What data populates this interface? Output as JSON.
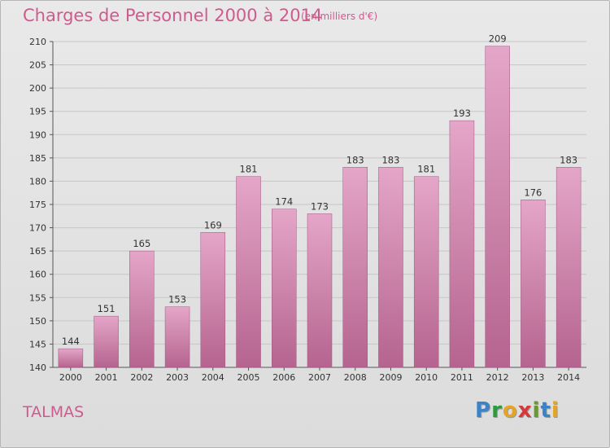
{
  "header": {
    "title": "Charges de Personnel 2000 à 2014",
    "subtitle": "(en milliers d'€)"
  },
  "footer": {
    "location": "TALMAS",
    "logo_text": "Proxiti"
  },
  "colors": {
    "bar_top": "#e4a6c8",
    "bar_bottom": "#b5648f",
    "text_accent": "#d05a8e"
  },
  "chart_data": {
    "type": "bar",
    "title": "Charges de Personnel 2000 à 2014",
    "subtitle": "(en milliers d'€)",
    "categories": [
      "2000",
      "2001",
      "2002",
      "2003",
      "2004",
      "2005",
      "2006",
      "2007",
      "2008",
      "2009",
      "2010",
      "2011",
      "2012",
      "2013",
      "2014"
    ],
    "values": [
      144,
      151,
      165,
      153,
      169,
      181,
      174,
      173,
      183,
      183,
      181,
      193,
      209,
      176,
      183
    ],
    "ylim": [
      140,
      210
    ],
    "yticks": [
      140,
      145,
      150,
      155,
      160,
      165,
      170,
      175,
      180,
      185,
      190,
      195,
      200,
      205,
      210
    ],
    "grid": true,
    "data_labels": true
  }
}
